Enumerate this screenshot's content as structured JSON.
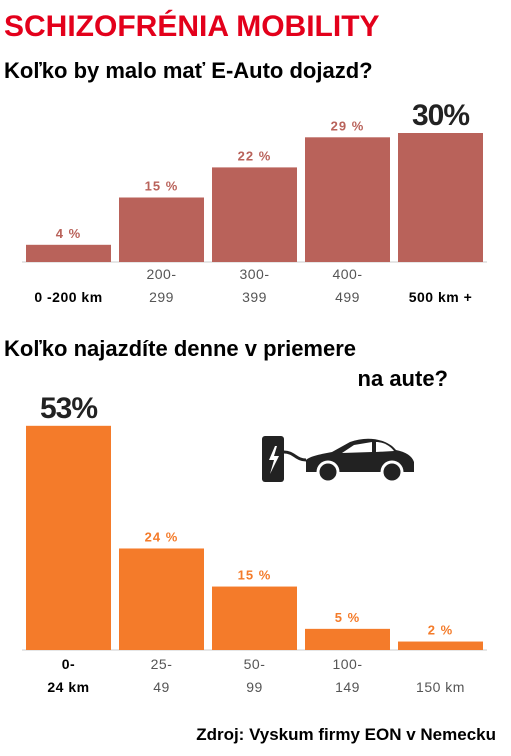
{
  "title": "SCHIZOFRÉNIA MOBILITY",
  "source": "Zdroj: Vyskum firmy EON v Nemecku",
  "chart_data": [
    {
      "type": "bar",
      "title": "Koľko by malo mať E-Auto dojazd?",
      "categories": [
        "0 -200 km",
        "200-\n299",
        "300-\n399",
        "400-\n499",
        "500 km +"
      ],
      "values": [
        4,
        15,
        22,
        29,
        30
      ],
      "value_labels": [
        "4 %",
        "15 %",
        "22 %",
        "29 %",
        "30%"
      ],
      "color": "#b9625a"
    },
    {
      "type": "bar",
      "title": "Koľko najazdíte denne v priemere\nna aute?",
      "categories": [
        "0-\n24 km",
        "25-\n49",
        "50-\n99",
        "100-\n149",
        "150 km"
      ],
      "values": [
        53,
        24,
        15,
        5,
        2
      ],
      "value_labels": [
        "53%",
        "24 %",
        "15 %",
        "5 %",
        "2 %"
      ],
      "color": "#f47b2a"
    }
  ]
}
